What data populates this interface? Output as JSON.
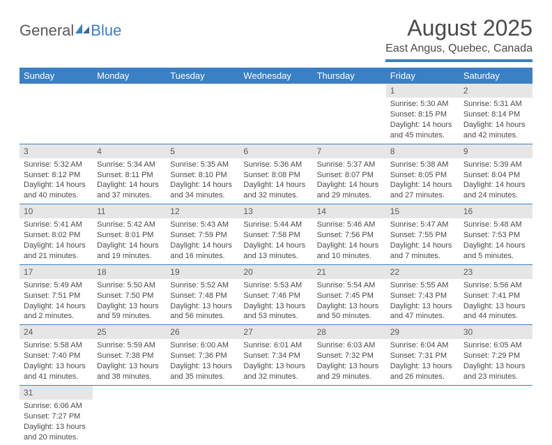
{
  "logo": {
    "word1": "General",
    "word2": "Blue"
  },
  "title": "August 2025",
  "location": "East Angus, Quebec, Canada",
  "colors": {
    "header_bg": "#3b7fc4",
    "header_text": "#ffffff",
    "daynum_bg": "#e6e6e6",
    "border": "#3b7fc4",
    "text": "#4a4a4a"
  },
  "weekdays": [
    "Sunday",
    "Monday",
    "Tuesday",
    "Wednesday",
    "Thursday",
    "Friday",
    "Saturday"
  ],
  "weeks": [
    [
      null,
      null,
      null,
      null,
      null,
      {
        "n": "1",
        "sr": "Sunrise: 5:30 AM",
        "ss": "Sunset: 8:15 PM",
        "d1": "Daylight: 14 hours",
        "d2": "and 45 minutes."
      },
      {
        "n": "2",
        "sr": "Sunrise: 5:31 AM",
        "ss": "Sunset: 8:14 PM",
        "d1": "Daylight: 14 hours",
        "d2": "and 42 minutes."
      }
    ],
    [
      {
        "n": "3",
        "sr": "Sunrise: 5:32 AM",
        "ss": "Sunset: 8:12 PM",
        "d1": "Daylight: 14 hours",
        "d2": "and 40 minutes."
      },
      {
        "n": "4",
        "sr": "Sunrise: 5:34 AM",
        "ss": "Sunset: 8:11 PM",
        "d1": "Daylight: 14 hours",
        "d2": "and 37 minutes."
      },
      {
        "n": "5",
        "sr": "Sunrise: 5:35 AM",
        "ss": "Sunset: 8:10 PM",
        "d1": "Daylight: 14 hours",
        "d2": "and 34 minutes."
      },
      {
        "n": "6",
        "sr": "Sunrise: 5:36 AM",
        "ss": "Sunset: 8:08 PM",
        "d1": "Daylight: 14 hours",
        "d2": "and 32 minutes."
      },
      {
        "n": "7",
        "sr": "Sunrise: 5:37 AM",
        "ss": "Sunset: 8:07 PM",
        "d1": "Daylight: 14 hours",
        "d2": "and 29 minutes."
      },
      {
        "n": "8",
        "sr": "Sunrise: 5:38 AM",
        "ss": "Sunset: 8:05 PM",
        "d1": "Daylight: 14 hours",
        "d2": "and 27 minutes."
      },
      {
        "n": "9",
        "sr": "Sunrise: 5:39 AM",
        "ss": "Sunset: 8:04 PM",
        "d1": "Daylight: 14 hours",
        "d2": "and 24 minutes."
      }
    ],
    [
      {
        "n": "10",
        "sr": "Sunrise: 5:41 AM",
        "ss": "Sunset: 8:02 PM",
        "d1": "Daylight: 14 hours",
        "d2": "and 21 minutes."
      },
      {
        "n": "11",
        "sr": "Sunrise: 5:42 AM",
        "ss": "Sunset: 8:01 PM",
        "d1": "Daylight: 14 hours",
        "d2": "and 19 minutes."
      },
      {
        "n": "12",
        "sr": "Sunrise: 5:43 AM",
        "ss": "Sunset: 7:59 PM",
        "d1": "Daylight: 14 hours",
        "d2": "and 16 minutes."
      },
      {
        "n": "13",
        "sr": "Sunrise: 5:44 AM",
        "ss": "Sunset: 7:58 PM",
        "d1": "Daylight: 14 hours",
        "d2": "and 13 minutes."
      },
      {
        "n": "14",
        "sr": "Sunrise: 5:46 AM",
        "ss": "Sunset: 7:56 PM",
        "d1": "Daylight: 14 hours",
        "d2": "and 10 minutes."
      },
      {
        "n": "15",
        "sr": "Sunrise: 5:47 AM",
        "ss": "Sunset: 7:55 PM",
        "d1": "Daylight: 14 hours",
        "d2": "and 7 minutes."
      },
      {
        "n": "16",
        "sr": "Sunrise: 5:48 AM",
        "ss": "Sunset: 7:53 PM",
        "d1": "Daylight: 14 hours",
        "d2": "and 5 minutes."
      }
    ],
    [
      {
        "n": "17",
        "sr": "Sunrise: 5:49 AM",
        "ss": "Sunset: 7:51 PM",
        "d1": "Daylight: 14 hours",
        "d2": "and 2 minutes."
      },
      {
        "n": "18",
        "sr": "Sunrise: 5:50 AM",
        "ss": "Sunset: 7:50 PM",
        "d1": "Daylight: 13 hours",
        "d2": "and 59 minutes."
      },
      {
        "n": "19",
        "sr": "Sunrise: 5:52 AM",
        "ss": "Sunset: 7:48 PM",
        "d1": "Daylight: 13 hours",
        "d2": "and 56 minutes."
      },
      {
        "n": "20",
        "sr": "Sunrise: 5:53 AM",
        "ss": "Sunset: 7:46 PM",
        "d1": "Daylight: 13 hours",
        "d2": "and 53 minutes."
      },
      {
        "n": "21",
        "sr": "Sunrise: 5:54 AM",
        "ss": "Sunset: 7:45 PM",
        "d1": "Daylight: 13 hours",
        "d2": "and 50 minutes."
      },
      {
        "n": "22",
        "sr": "Sunrise: 5:55 AM",
        "ss": "Sunset: 7:43 PM",
        "d1": "Daylight: 13 hours",
        "d2": "and 47 minutes."
      },
      {
        "n": "23",
        "sr": "Sunrise: 5:56 AM",
        "ss": "Sunset: 7:41 PM",
        "d1": "Daylight: 13 hours",
        "d2": "and 44 minutes."
      }
    ],
    [
      {
        "n": "24",
        "sr": "Sunrise: 5:58 AM",
        "ss": "Sunset: 7:40 PM",
        "d1": "Daylight: 13 hours",
        "d2": "and 41 minutes."
      },
      {
        "n": "25",
        "sr": "Sunrise: 5:59 AM",
        "ss": "Sunset: 7:38 PM",
        "d1": "Daylight: 13 hours",
        "d2": "and 38 minutes."
      },
      {
        "n": "26",
        "sr": "Sunrise: 6:00 AM",
        "ss": "Sunset: 7:36 PM",
        "d1": "Daylight: 13 hours",
        "d2": "and 35 minutes."
      },
      {
        "n": "27",
        "sr": "Sunrise: 6:01 AM",
        "ss": "Sunset: 7:34 PM",
        "d1": "Daylight: 13 hours",
        "d2": "and 32 minutes."
      },
      {
        "n": "28",
        "sr": "Sunrise: 6:03 AM",
        "ss": "Sunset: 7:32 PM",
        "d1": "Daylight: 13 hours",
        "d2": "and 29 minutes."
      },
      {
        "n": "29",
        "sr": "Sunrise: 6:04 AM",
        "ss": "Sunset: 7:31 PM",
        "d1": "Daylight: 13 hours",
        "d2": "and 26 minutes."
      },
      {
        "n": "30",
        "sr": "Sunrise: 6:05 AM",
        "ss": "Sunset: 7:29 PM",
        "d1": "Daylight: 13 hours",
        "d2": "and 23 minutes."
      }
    ],
    [
      {
        "n": "31",
        "sr": "Sunrise: 6:06 AM",
        "ss": "Sunset: 7:27 PM",
        "d1": "Daylight: 13 hours",
        "d2": "and 20 minutes."
      },
      null,
      null,
      null,
      null,
      null,
      null
    ]
  ]
}
